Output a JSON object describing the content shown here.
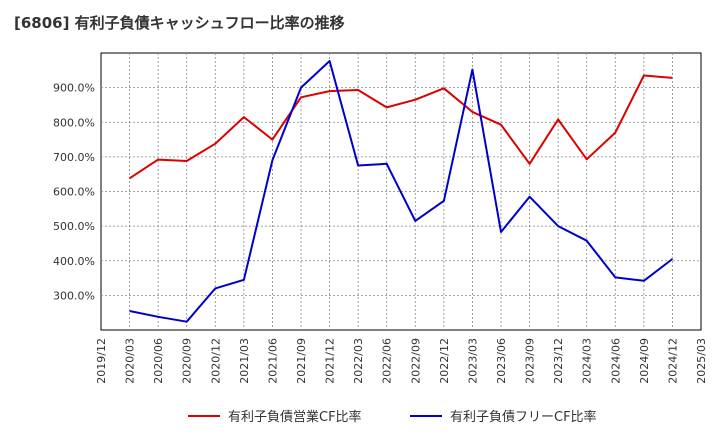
{
  "chart_data": {
    "type": "line",
    "title": "[6806]  有利子負債キャッシュフロー比率の推移",
    "xlabel": "",
    "ylabel": "",
    "x": [
      "2020/03",
      "2020/06",
      "2020/09",
      "2020/12",
      "2021/03",
      "2021/06",
      "2021/09",
      "2021/12",
      "2022/03",
      "2022/06",
      "2022/09",
      "2022/12",
      "2023/03",
      "2023/06",
      "2023/09",
      "2023/12",
      "2024/03",
      "2024/06",
      "2024/09",
      "2024/12"
    ],
    "x_ticks": [
      "2019/12",
      "2020/03",
      "2020/06",
      "2020/09",
      "2020/12",
      "2021/03",
      "2021/06",
      "2021/09",
      "2021/12",
      "2022/03",
      "2022/06",
      "2022/09",
      "2022/12",
      "2023/03",
      "2023/06",
      "2023/09",
      "2023/12",
      "2024/03",
      "2024/06",
      "2024/09",
      "2024/12",
      "2025/03"
    ],
    "y_ticks": [
      "300.0%",
      "400.0%",
      "500.0%",
      "600.0%",
      "700.0%",
      "800.0%",
      "900.0%"
    ],
    "ylim": [
      200,
      1000
    ],
    "grid": true,
    "legend_position": "bottom",
    "series": [
      {
        "name": "有利子負債営業CF比率",
        "color": "#dd0000",
        "values": [
          638,
          692,
          688,
          738,
          815,
          750,
          872,
          890,
          893,
          843,
          865,
          898,
          830,
          793,
          680,
          808,
          693,
          770,
          935,
          928
        ]
      },
      {
        "name": "有利子負債フリーCF比率",
        "color": "#0000cc",
        "values": [
          255,
          238,
          224,
          320,
          345,
          690,
          900,
          977,
          675,
          680,
          515,
          573,
          952,
          483,
          585,
          500,
          458,
          352,
          342,
          405
        ]
      }
    ]
  }
}
